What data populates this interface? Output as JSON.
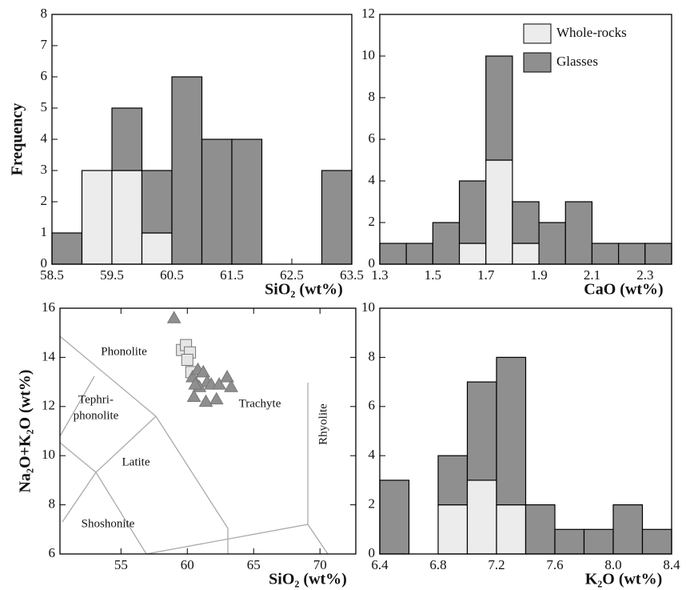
{
  "chart_data": [
    {
      "type": "histogram",
      "xlabel": "SiO₂ (wt%)",
      "ylabel": "Frequency",
      "bins": [
        58.5,
        59,
        59.5,
        60,
        60.5,
        61,
        61.5,
        62,
        62.5,
        63,
        63.5
      ],
      "series": [
        {
          "color": "#ececec",
          "values": [
            0,
            3,
            3,
            1,
            0,
            0,
            0,
            0,
            0,
            0
          ]
        },
        {
          "color": "#8f8f8f",
          "values": [
            1,
            0,
            2,
            2,
            6,
            4,
            4,
            0,
            0,
            3
          ]
        }
      ],
      "xlim": [
        58.5,
        63.5
      ],
      "xticks": [
        58.5,
        59.5,
        60.5,
        61.5,
        62.5,
        63.5
      ],
      "ylim": [
        0,
        8
      ],
      "yticks": [
        0,
        1,
        2,
        3,
        4,
        5,
        6,
        7,
        8
      ]
    },
    {
      "type": "histogram",
      "xlabel": "CaO (wt%)",
      "legend": "upper right",
      "bins": [
        1.3,
        1.4,
        1.5,
        1.6,
        1.7,
        1.8,
        1.9,
        2.0,
        2.1,
        2.2,
        2.3,
        2.4
      ],
      "series": [
        {
          "name": "Whole-rocks",
          "color": "#ececec",
          "values": [
            0,
            0,
            0,
            1,
            5,
            1,
            0,
            0,
            0,
            0,
            0
          ]
        },
        {
          "name": "Glasses",
          "color": "#8f8f8f",
          "values": [
            1,
            1,
            2,
            3,
            5,
            2,
            2,
            3,
            1,
            1,
            1
          ]
        }
      ],
      "xlim": [
        1.3,
        2.4
      ],
      "xticks": [
        1.3,
        1.5,
        1.7,
        1.9,
        2.1,
        2.3
      ],
      "ylim": [
        0,
        12
      ],
      "yticks": [
        0,
        2,
        4,
        6,
        8,
        10,
        12
      ]
    },
    {
      "type": "scatter",
      "xlabel": "SiO₂ (wt%)",
      "ylabel": "Na₂O+K₂O (wt%)",
      "series": [
        {
          "marker": "square",
          "color": "#e6e6e6",
          "x": [
            59.6,
            59.9,
            60.2,
            60.0,
            60.3
          ],
          "y": [
            14.3,
            14.5,
            14.2,
            13.9,
            13.4
          ]
        },
        {
          "marker": "triangle",
          "color": "#8f8f8f",
          "x": [
            59.0,
            60.4,
            60.8,
            61.2,
            61.5,
            60.9,
            61.8,
            60.5,
            61.4,
            62.4,
            63.0,
            63.3,
            62.2,
            60.6
          ],
          "y": [
            15.6,
            13.2,
            13.5,
            13.4,
            13.0,
            12.8,
            12.9,
            12.4,
            12.2,
            12.9,
            13.2,
            12.8,
            12.3,
            12.9
          ]
        }
      ],
      "annotations": [
        "Phonolite",
        "Tephri-",
        "phonolite",
        "Latite",
        "Trachyte",
        "Shoshonite",
        "Rhyolite"
      ],
      "xlim": [
        50.4,
        72.7
      ],
      "xticks": [
        55,
        60,
        65,
        70
      ],
      "ylim": [
        6,
        16
      ],
      "yticks": [
        6,
        8,
        10,
        12,
        14,
        16
      ]
    },
    {
      "type": "histogram",
      "xlabel": "K₂O (wt%)",
      "bins": [
        6.4,
        6.6,
        6.8,
        7.0,
        7.2,
        7.4,
        7.6,
        7.8,
        8.0,
        8.2,
        8.4
      ],
      "series": [
        {
          "color": "#ececec",
          "values": [
            0,
            0,
            2,
            3,
            2,
            0,
            0,
            0,
            0,
            0
          ]
        },
        {
          "color": "#8f8f8f",
          "values": [
            3,
            0,
            2,
            4,
            6,
            2,
            1,
            1,
            2,
            1
          ]
        }
      ],
      "xlim": [
        6.4,
        8.4
      ],
      "xticks": [
        6.4,
        6.8,
        7.2,
        7.6,
        {
          "value": 8.0,
          "label": "8.0"
        },
        8.4
      ],
      "ylim": [
        0,
        10
      ],
      "yticks": [
        0,
        2,
        4,
        6,
        8,
        10
      ]
    }
  ]
}
